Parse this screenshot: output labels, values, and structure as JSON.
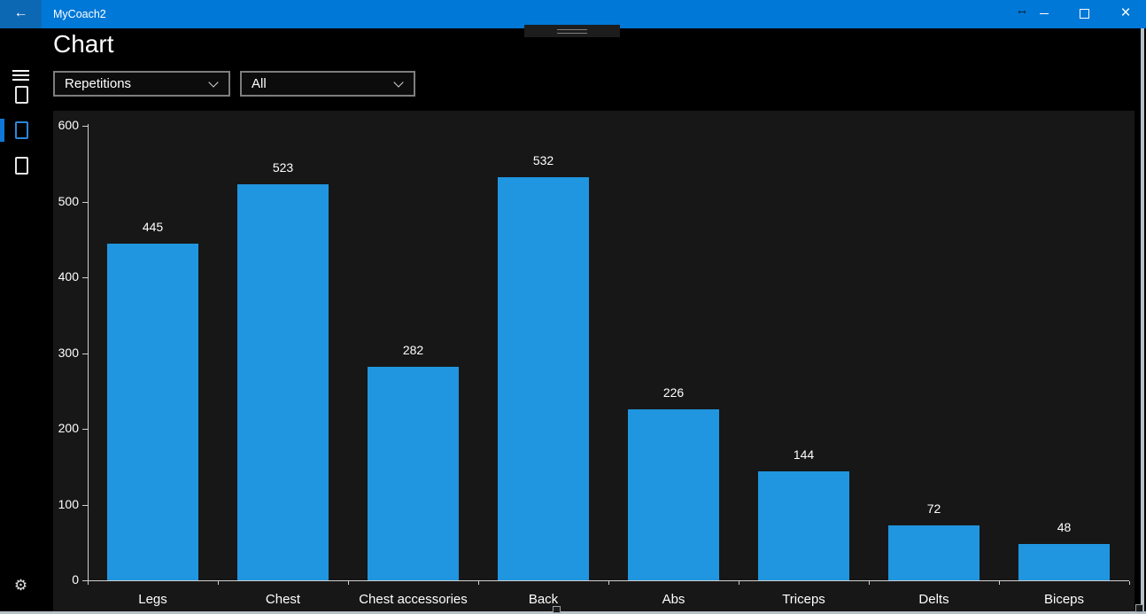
{
  "titlebar": {
    "title": "MyCoach2"
  },
  "icons": {
    "back": "←",
    "resize_pointer": "↔",
    "close": "×",
    "gear": "⚙"
  },
  "page": {
    "title": "Chart"
  },
  "filters": {
    "metric": {
      "value": "Repetitions"
    },
    "scope": {
      "value": "All"
    }
  },
  "colors": {
    "titlebar": "#0078d7",
    "accent": "#0f78d7",
    "bar": "#2096e0",
    "chart_background": "#171717",
    "axis": "#cfcfcf"
  },
  "chart_data": {
    "type": "bar",
    "title": "",
    "xlabel": "",
    "ylabel": "",
    "categories": [
      "Legs",
      "Chest",
      "Chest accessories",
      "Back",
      "Abs",
      "Triceps",
      "Delts",
      "Biceps"
    ],
    "values": [
      445,
      523,
      282,
      532,
      226,
      144,
      72,
      48
    ],
    "yticks": [
      0,
      100,
      200,
      300,
      400,
      500,
      600
    ],
    "ylim": [
      0,
      600
    ],
    "value_labels_shown": true,
    "grid": false,
    "legend": null
  }
}
